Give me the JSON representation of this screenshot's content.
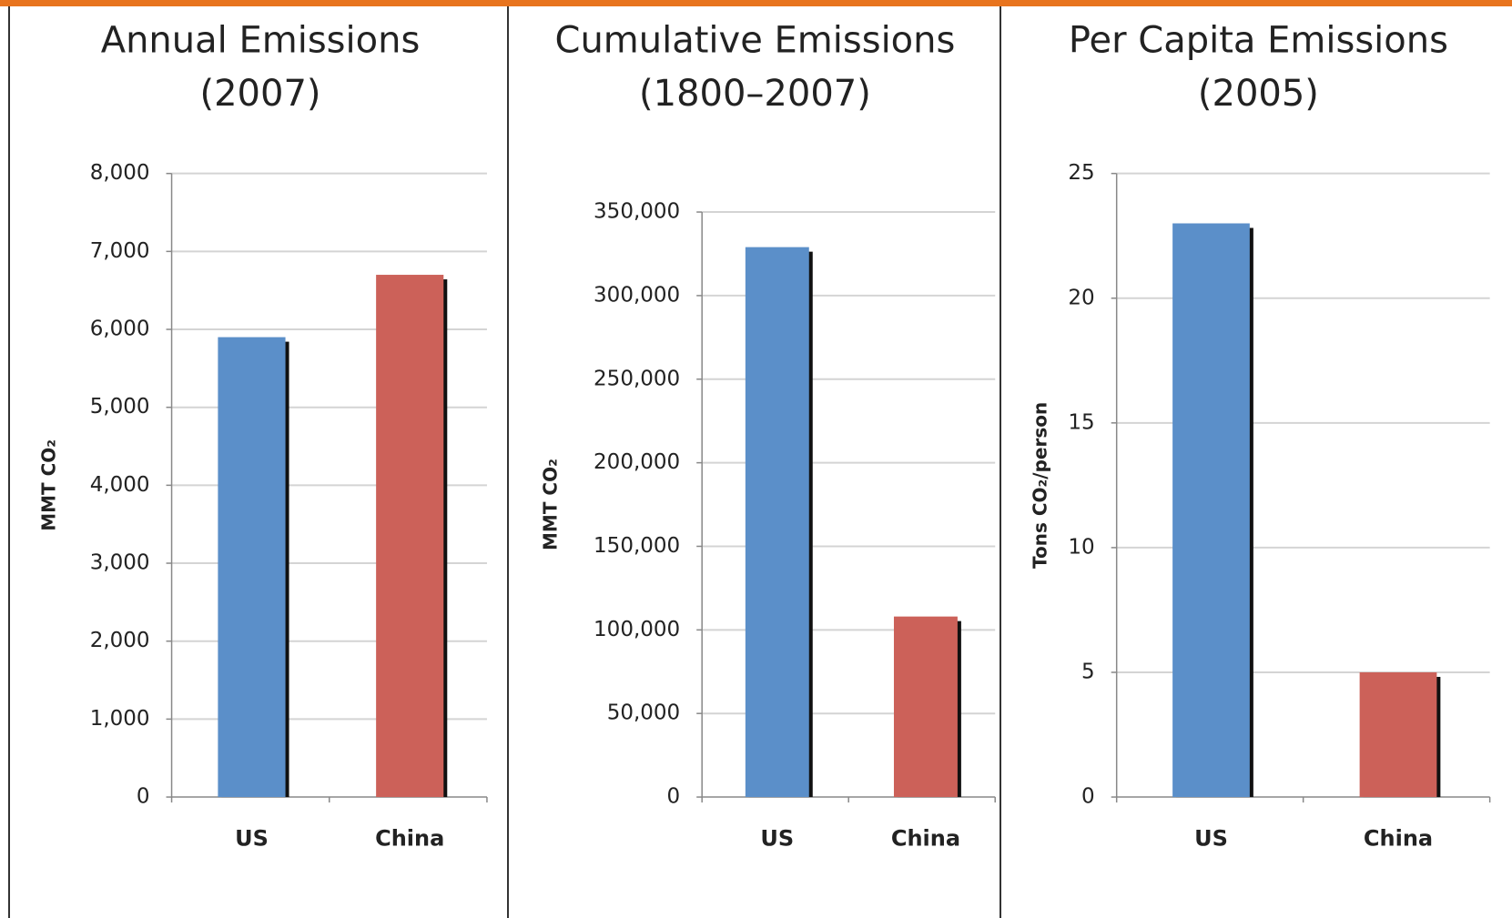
{
  "chart_data": [
    {
      "type": "bar",
      "title": "Annual Emissions",
      "subtitle": "(2007)",
      "y_label": "MMT CO₂",
      "categories": [
        "US",
        "China"
      ],
      "values": [
        5900,
        6700
      ],
      "colors": [
        "#5b8fc9",
        "#cc6159"
      ],
      "ylim": [
        0,
        8000
      ],
      "yticks": [
        0,
        {
          "value": 1000,
          "label": "1,000"
        },
        {
          "value": 2000,
          "label": "2,000"
        },
        {
          "value": 3000,
          "label": "3,000"
        },
        {
          "value": 4000,
          "label": "4,000"
        },
        {
          "value": 5000,
          "label": "5,000"
        },
        {
          "value": 6000,
          "label": "6,000"
        },
        {
          "value": 7000,
          "label": "7,000"
        },
        {
          "value": 8000,
          "label": "8,000"
        }
      ],
      "grid": true
    },
    {
      "type": "bar",
      "title": "Cumulative Emissions",
      "subtitle": "(1800–2007)",
      "y_label": "MMT CO₂",
      "categories": [
        "US",
        "China"
      ],
      "values": [
        329000,
        108000
      ],
      "colors": [
        "#5b8fc9",
        "#cc6159"
      ],
      "ylim": [
        0,
        350000
      ],
      "yticks": [
        0,
        {
          "value": 50000,
          "label": "50,000"
        },
        {
          "value": 100000,
          "label": "100,000"
        },
        {
          "value": 150000,
          "label": "150,000"
        },
        {
          "value": 200000,
          "label": "200,000"
        },
        {
          "value": 250000,
          "label": "250,000"
        },
        {
          "value": 300000,
          "label": "300,000"
        },
        {
          "value": 350000,
          "label": "350,000"
        }
      ],
      "grid": true
    },
    {
      "type": "bar",
      "title": "Per Capita Emissions",
      "subtitle": "(2005)",
      "y_label": "Tons CO₂/person",
      "categories": [
        "US",
        "China"
      ],
      "values": [
        23,
        5
      ],
      "colors": [
        "#5b8fc9",
        "#cc6159"
      ],
      "ylim": [
        0,
        25
      ],
      "yticks": [
        0,
        5,
        10,
        15,
        20,
        25
      ],
      "grid": true
    }
  ]
}
